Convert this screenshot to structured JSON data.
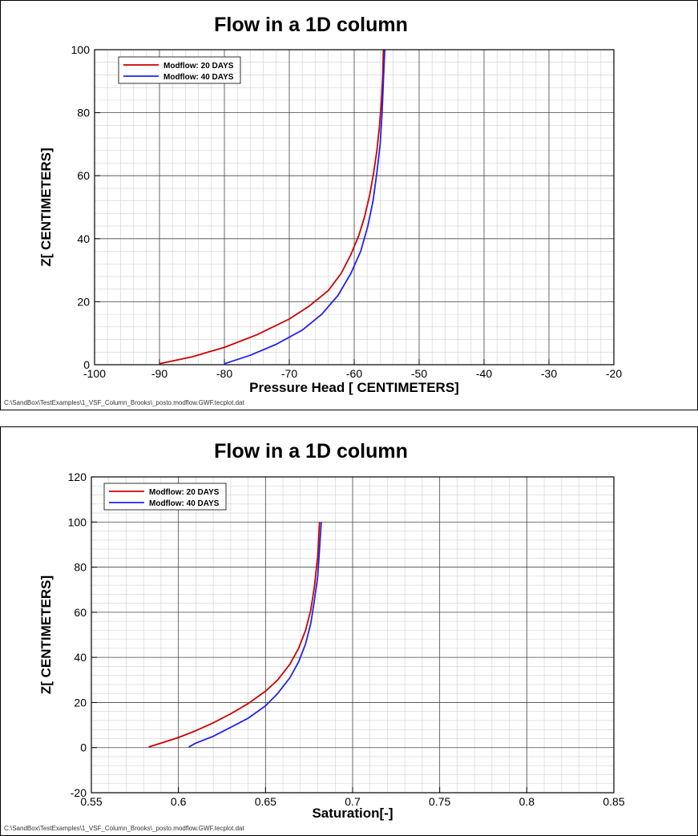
{
  "chart_data": [
    {
      "type": "line",
      "title": "Flow in a 1D column",
      "xlabel": "Pressure Head [ CENTIMETERS]",
      "ylabel": "Z[ CENTIMETERS]",
      "xlim": [
        -100,
        -20
      ],
      "ylim": [
        0,
        100
      ],
      "xticks": [
        -100,
        -90,
        -80,
        -70,
        -60,
        -50,
        -40,
        -30,
        -20
      ],
      "yticks": [
        0,
        20,
        40,
        60,
        80,
        100
      ],
      "grid": true,
      "legend_position": "top-left",
      "footer": "C:\\SandBox\\TestExamples\\1_VSF_Column_Brooks\\_posto.modflow.GWF.tecplot.dat",
      "series": [
        {
          "name": "Modflow: 20 DAYS",
          "color": "#cc0000",
          "x": [
            -90,
            -85,
            -80,
            -75,
            -70,
            -67,
            -64,
            -62,
            -60.5,
            -59.3,
            -58.4,
            -57.6,
            -57,
            -56.5,
            -56.1,
            -55.8,
            -55.6,
            -55.5
          ],
          "y": [
            0.3,
            2.5,
            5.5,
            9.5,
            14.5,
            18.5,
            23.5,
            29,
            35,
            41,
            47,
            54,
            61,
            68,
            76,
            84,
            92,
            100
          ]
        },
        {
          "name": "Modflow: 40 DAYS",
          "color": "#2222ee",
          "x": [
            -80,
            -76,
            -72,
            -68,
            -65,
            -62.5,
            -60.5,
            -59,
            -57.9,
            -57.1,
            -56.5,
            -56,
            -55.7,
            -55.5,
            -55.3
          ],
          "y": [
            0.3,
            3,
            6.5,
            11,
            16,
            22,
            29,
            36,
            44,
            52,
            61,
            70,
            80,
            90,
            100
          ]
        }
      ]
    },
    {
      "type": "line",
      "title": "Flow in a 1D column",
      "xlabel": "Saturation[-]",
      "ylabel": "Z[ CENTIMETERS]",
      "xlim": [
        0.55,
        0.85
      ],
      "ylim": [
        -20,
        120
      ],
      "xticks": [
        0.55,
        0.6,
        0.65,
        0.7,
        0.75,
        0.8,
        0.85
      ],
      "yticks": [
        -20,
        0,
        20,
        40,
        60,
        80,
        100,
        120
      ],
      "grid": true,
      "legend_position": "top-left",
      "footer": "C:\\SandBox\\TestExamples\\1_VSF_Column_Brooks\\_posto.modflow.GWF.tecplot.dat",
      "series": [
        {
          "name": "Modflow: 20 DAYS",
          "color": "#cc0000",
          "x": [
            0.583,
            0.59,
            0.6,
            0.61,
            0.62,
            0.63,
            0.64,
            0.65,
            0.657,
            0.664,
            0.669,
            0.673,
            0.676,
            0.678,
            0.68,
            0.681
          ],
          "y": [
            0.3,
            2,
            4.5,
            7.5,
            11,
            15,
            19.5,
            25,
            30,
            37,
            44,
            52,
            61,
            71,
            85,
            100
          ]
        },
        {
          "name": "Modflow: 40 DAYS",
          "color": "#2222ee",
          "x": [
            0.606,
            0.61,
            0.62,
            0.63,
            0.64,
            0.65,
            0.657,
            0.664,
            0.669,
            0.673,
            0.676,
            0.678,
            0.68,
            0.681,
            0.682
          ],
          "y": [
            0.3,
            2,
            5,
            9,
            13,
            18.5,
            24,
            31,
            38,
            46,
            55,
            65,
            76,
            88,
            100
          ]
        }
      ]
    }
  ]
}
